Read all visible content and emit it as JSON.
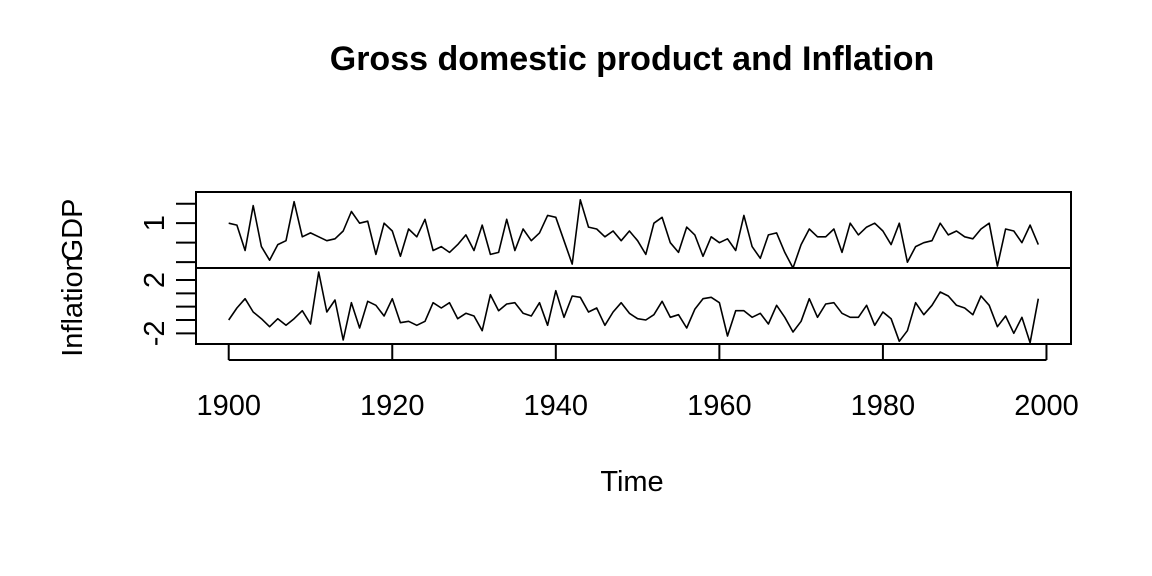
{
  "chart_data": {
    "type": "line",
    "title": "Gross domestic product and Inflation",
    "xlabel": "Time",
    "x_start": 1900,
    "x_end": 1999,
    "xlim": [
      1896,
      2003
    ],
    "x_ticks": [
      1900,
      1920,
      1940,
      1960,
      1980,
      2000
    ],
    "panels": [
      {
        "name": "GDP",
        "ylim": [
          -1.3,
          2.6
        ],
        "y_ticks": [
          -1,
          0,
          1,
          2
        ],
        "y_tick_labels": [
          "",
          "",
          "1",
          ""
        ],
        "values": [
          1.0,
          0.9,
          -0.4,
          1.9,
          -0.2,
          -0.9,
          -0.1,
          0.1,
          2.1,
          0.3,
          0.5,
          0.3,
          0.1,
          0.2,
          0.6,
          1.6,
          1.0,
          1.1,
          -0.6,
          1.0,
          0.6,
          -0.7,
          0.7,
          0.3,
          1.2,
          -0.4,
          -0.2,
          -0.5,
          -0.1,
          0.4,
          -0.4,
          0.9,
          -0.6,
          -0.5,
          1.2,
          -0.4,
          0.7,
          0.1,
          0.5,
          1.4,
          1.3,
          0.1,
          -1.1,
          2.2,
          0.8,
          0.7,
          0.3,
          0.6,
          0.1,
          0.6,
          0.1,
          -0.6,
          1.0,
          1.3,
          0.0,
          -0.5,
          0.8,
          0.4,
          -0.7,
          0.3,
          0.0,
          0.2,
          -0.4,
          1.4,
          -0.2,
          -0.8,
          0.4,
          0.5,
          -0.5,
          -1.3,
          -0.1,
          0.7,
          0.3,
          0.3,
          0.7,
          -0.5,
          1.0,
          0.4,
          0.8,
          1.0,
          0.6,
          -0.1,
          1.0,
          -1.0,
          -0.2,
          0.0,
          0.1,
          1.0,
          0.4,
          0.6,
          0.3,
          0.2,
          0.7,
          1.0,
          -1.2,
          0.7,
          0.6,
          0.0,
          0.9,
          -0.1
        ]
      },
      {
        "name": "Inflation",
        "ylim": [
          -2.8,
          2.9
        ],
        "y_ticks": [
          -2,
          -1,
          0,
          1,
          2
        ],
        "y_tick_labels": [
          "-2",
          "",
          "",
          "",
          "2"
        ],
        "values": [
          -1.0,
          -0.1,
          0.6,
          -0.4,
          -0.9,
          -1.5,
          -0.9,
          -1.4,
          -0.9,
          -0.3,
          -1.3,
          2.6,
          -0.4,
          0.5,
          -2.5,
          0.3,
          -1.6,
          0.4,
          0.1,
          -0.7,
          0.6,
          -1.2,
          -1.1,
          -1.4,
          -1.1,
          0.3,
          -0.1,
          0.3,
          -0.9,
          -0.5,
          -0.7,
          -1.8,
          0.9,
          -0.3,
          0.2,
          0.3,
          -0.5,
          -0.7,
          0.3,
          -1.4,
          1.2,
          -0.8,
          0.8,
          0.7,
          -0.4,
          -0.1,
          -1.4,
          -0.4,
          0.3,
          -0.5,
          -0.9,
          -1.0,
          -0.6,
          0.4,
          -0.8,
          -0.6,
          -1.6,
          -0.2,
          0.6,
          0.7,
          0.3,
          -2.2,
          -0.3,
          -0.3,
          -0.8,
          -0.5,
          -1.3,
          0.1,
          -0.8,
          -1.9,
          -1.1,
          0.6,
          -0.8,
          0.2,
          0.3,
          -0.5,
          -0.8,
          -0.8,
          0.1,
          -1.4,
          -0.4,
          -0.9,
          -2.6,
          -1.8,
          0.3,
          -0.6,
          0.1,
          1.1,
          0.8,
          0.1,
          -0.1,
          -0.6,
          0.8,
          0.1,
          -1.5,
          -0.7,
          -2.0,
          -0.8,
          -2.7,
          0.6
        ]
      }
    ],
    "grid": false
  }
}
